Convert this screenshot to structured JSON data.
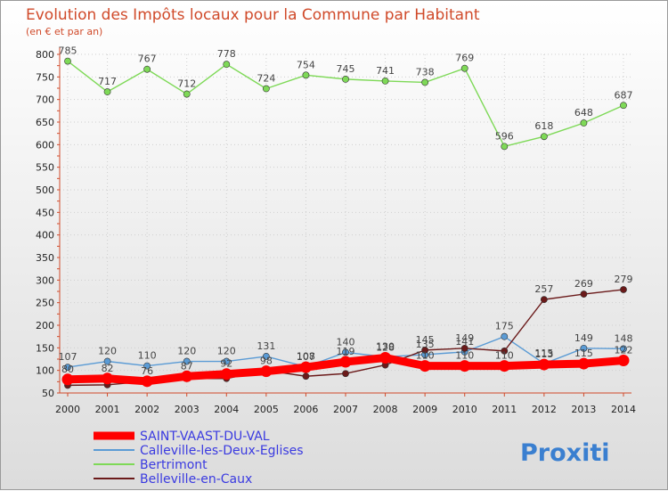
{
  "chart_data": {
    "type": "line",
    "title": "Evolution des Impôts locaux pour la Commune par Habitant",
    "subtitle": "(en € et par an)",
    "categories": [
      "2000",
      "2001",
      "2002",
      "2003",
      "2004",
      "2005",
      "2006",
      "2007",
      "2008",
      "2009",
      "2010",
      "2011",
      "2012",
      "2013",
      "2014"
    ],
    "ylim": [
      50,
      800
    ],
    "yticks": [
      50,
      100,
      150,
      200,
      250,
      300,
      350,
      400,
      450,
      500,
      550,
      600,
      650,
      700,
      750,
      800
    ],
    "series": [
      {
        "name": "SAINT-VAAST-DU-VAL",
        "color": "#ff0000",
        "values": [
          80,
          82,
          76,
          87,
          92,
          98,
          107,
          119,
          128,
          110,
          110,
          110,
          113,
          115,
          122
        ]
      },
      {
        "name": "Calleville-les-Deux-Eglises",
        "color": "#5a9bd5",
        "values": [
          107,
          120,
          110,
          120,
          120,
          131,
          108,
          140,
          130,
          135,
          141,
          175,
          115,
          149,
          148
        ]
      },
      {
        "name": "Bertrimont",
        "color": "#7ed957",
        "values": [
          785,
          717,
          767,
          712,
          778,
          724,
          754,
          745,
          741,
          738,
          769,
          596,
          618,
          648,
          687
        ]
      },
      {
        "name": "Belleville-en-Caux",
        "color": "#6b1a1a",
        "values": [
          67,
          68,
          76,
          82,
          82,
          100,
          87,
          93,
          112,
          145,
          149,
          143,
          257,
          269,
          279
        ]
      }
    ],
    "labels": [
      {
        "name": "SAINT-VAAST-DU-VAL",
        "values": [
          "80",
          "82",
          "76",
          "87",
          "92",
          "98",
          "107",
          "119",
          "128",
          "110",
          "110",
          "110",
          "113",
          "115",
          "122"
        ]
      },
      {
        "name": "Calleville-les-Deux-Eglises",
        "values": [
          "107",
          "120",
          "110",
          "120",
          "120",
          "131",
          "108",
          "140",
          "130",
          "135",
          "141",
          "175",
          "115",
          "149",
          "148"
        ]
      },
      {
        "name": "Bertrimont",
        "values": [
          "785",
          "717",
          "767",
          "712",
          "778",
          "724",
          "754",
          "745",
          "741",
          "738",
          "769",
          "596",
          "618",
          "648",
          "687"
        ]
      },
      {
        "name": "Belleville-en-Caux",
        "values": [
          "",
          "",
          "",
          "",
          "",
          "",
          "",
          "",
          "",
          "145",
          "149",
          "",
          "257",
          "269",
          "279"
        ]
      }
    ]
  },
  "legend": {
    "items": [
      "SAINT-VAAST-DU-VAL",
      "Calleville-les-Deux-Eglises",
      "Bertrimont",
      "Belleville-en-Caux"
    ]
  },
  "logo": {
    "text": "Proxiti"
  }
}
